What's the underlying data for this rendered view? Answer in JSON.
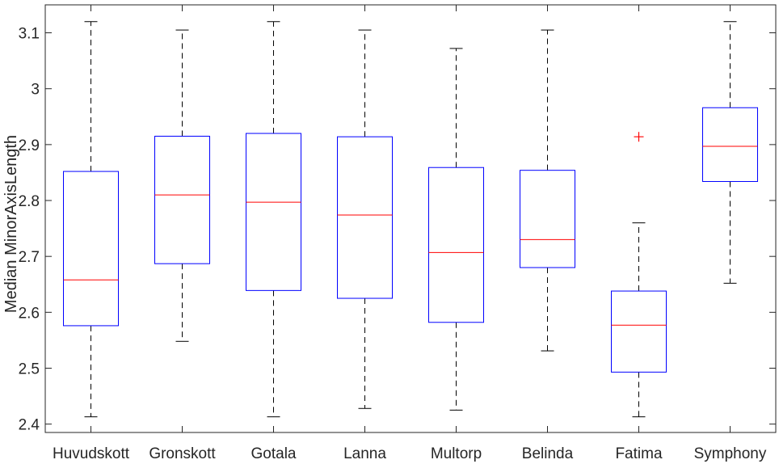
{
  "chart_data": {
    "type": "boxplot",
    "xlabel": "",
    "ylabel": "Median MinorAxisLength",
    "ylim": [
      2.385,
      3.15
    ],
    "yticks": [
      2.4,
      2.5,
      2.6,
      2.7,
      2.8,
      2.9,
      3,
      3.1
    ],
    "ytick_labels": [
      "2.4",
      "2.5",
      "2.6",
      "2.7",
      "2.8",
      "2.9",
      "3",
      "3.1"
    ],
    "grid": false,
    "categories": [
      "Huvudskott",
      "Gronskott",
      "Gotala",
      "Lanna",
      "Multorp",
      "Belinda",
      "Fatima",
      "Symphony"
    ],
    "boxes": [
      {
        "whisker_low": 2.413,
        "q1": 2.576,
        "median": 2.658,
        "q3": 2.852,
        "whisker_high": 3.12,
        "outliers": []
      },
      {
        "whisker_low": 2.548,
        "q1": 2.687,
        "median": 2.81,
        "q3": 2.915,
        "whisker_high": 3.105,
        "outliers": []
      },
      {
        "whisker_low": 2.413,
        "q1": 2.639,
        "median": 2.797,
        "q3": 2.92,
        "whisker_high": 3.12,
        "outliers": []
      },
      {
        "whisker_low": 2.428,
        "q1": 2.625,
        "median": 2.774,
        "q3": 2.914,
        "whisker_high": 3.105,
        "outliers": []
      },
      {
        "whisker_low": 2.425,
        "q1": 2.582,
        "median": 2.707,
        "q3": 2.859,
        "whisker_high": 3.072,
        "outliers": []
      },
      {
        "whisker_low": 2.531,
        "q1": 2.68,
        "median": 2.73,
        "q3": 2.854,
        "whisker_high": 3.105,
        "outliers": []
      },
      {
        "whisker_low": 2.413,
        "q1": 2.493,
        "median": 2.577,
        "q3": 2.638,
        "whisker_high": 2.76,
        "outliers": [
          2.914
        ]
      },
      {
        "whisker_low": 2.652,
        "q1": 2.834,
        "median": 2.897,
        "q3": 2.966,
        "whisker_high": 3.12,
        "outliers": []
      }
    ],
    "colors": {
      "box": "#0000ff",
      "median": "#ff0000",
      "whisker": "#000000",
      "outlier": "#ff0000",
      "axis": "#262626"
    }
  }
}
